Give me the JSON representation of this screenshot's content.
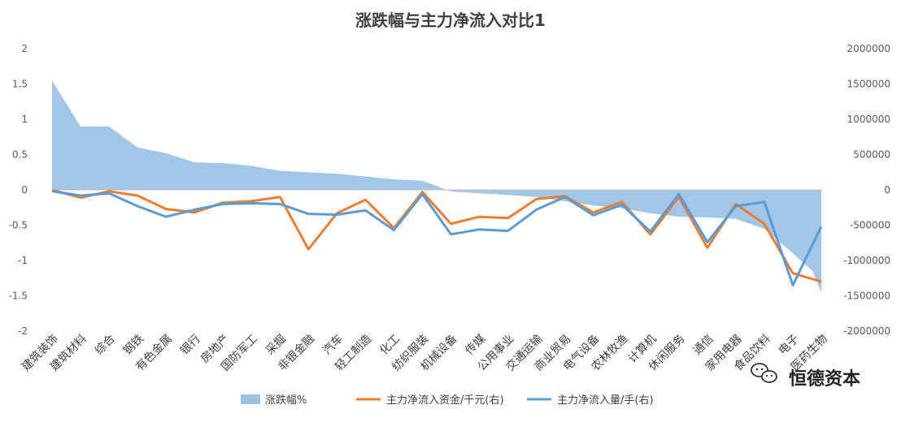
{
  "chart_data": {
    "type": "area+line",
    "title": "涨跌幅与主力净流入对比1",
    "categories": [
      "建筑装饰",
      "建筑材料",
      "综合",
      "钢铁",
      "有色金属",
      "银行",
      "房地产",
      "国防军工",
      "采掘",
      "非银金融",
      "汽车",
      "轻工制造",
      "化工",
      "纺织服装",
      "机械设备",
      "传媒",
      "公用事业",
      "交通运输",
      "商业贸易",
      "电气设备",
      "农林牧渔",
      "计算机",
      "休闲服务",
      "通信",
      "家用电器",
      "食品饮料",
      "电子",
      "医药生物"
    ],
    "y_left": {
      "min": -2,
      "max": 2,
      "ticks": [
        -2,
        -1.5,
        -1,
        -0.5,
        0,
        0.5,
        1,
        1.5,
        2
      ],
      "tick_labels": [
        "-2",
        "-1.5",
        "-1",
        "-0.5",
        "0",
        "0.5",
        "1",
        "1.5",
        "2"
      ]
    },
    "y_right": {
      "min": -2000000,
      "max": 2000000,
      "ticks": [
        -2000000,
        -1500000,
        -1000000,
        -500000,
        0,
        500000,
        1000000,
        1500000,
        2000000
      ],
      "tick_labels": [
        "-2000000",
        "-1500000",
        "-1000000",
        "-500000",
        "0",
        "500000",
        "1000000",
        "1500000",
        "2000000"
      ]
    },
    "area_x": [
      0,
      1,
      2,
      3,
      4,
      5,
      6,
      7,
      8,
      9,
      10,
      11,
      12,
      13,
      14,
      15,
      16,
      17,
      18,
      19,
      20,
      21,
      22,
      23,
      24,
      25,
      26,
      26.7,
      27
    ],
    "area_values": [
      1.55,
      0.9,
      0.9,
      0.6,
      0.52,
      0.39,
      0.38,
      0.34,
      0.27,
      0.25,
      0.23,
      0.19,
      0.15,
      0.13,
      -0.02,
      -0.05,
      -0.07,
      -0.1,
      -0.16,
      -0.22,
      -0.26,
      -0.33,
      -0.38,
      -0.39,
      -0.41,
      -0.55,
      -0.9,
      -1.15,
      -1.45
    ],
    "series": [
      {
        "name": "涨跌幅%",
        "axis": "left",
        "style": "area",
        "color": "#9dc3e6"
      },
      {
        "name": "主力净流入资金/千元(右)",
        "axis": "right",
        "style": "line",
        "color": "#ed7d31",
        "values": [
          0,
          -110000,
          -20000,
          -80000,
          -270000,
          -320000,
          -180000,
          -160000,
          -100000,
          -840000,
          -330000,
          -140000,
          -540000,
          -30000,
          -480000,
          -380000,
          -400000,
          -130000,
          -90000,
          -320000,
          -170000,
          -630000,
          -100000,
          -820000,
          -200000,
          -480000,
          -1180000,
          -1300000
        ]
      },
      {
        "name": "主力净流入量/手(右)",
        "axis": "right",
        "style": "line",
        "color": "#5b9bd5",
        "values": [
          -20000,
          -80000,
          -50000,
          -230000,
          -380000,
          -280000,
          -200000,
          -190000,
          -200000,
          -340000,
          -350000,
          -290000,
          -570000,
          -60000,
          -630000,
          -560000,
          -580000,
          -280000,
          -100000,
          -360000,
          -210000,
          -590000,
          -60000,
          -740000,
          -230000,
          -170000,
          -1350000,
          -520000
        ]
      }
    ],
    "legend_position": "bottom"
  },
  "watermark": {
    "text": "恒德资本",
    "icon": "wechat-icon"
  }
}
